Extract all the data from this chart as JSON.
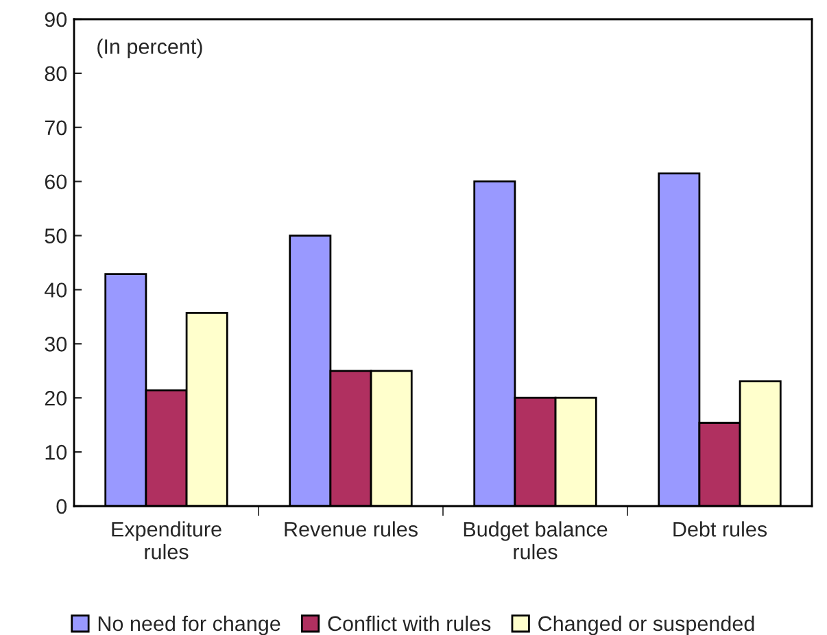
{
  "chart_data": {
    "type": "bar",
    "categories": [
      "Expenditure\nrules",
      "Revenue rules",
      "Budget balance\nrules",
      "Debt rules"
    ],
    "series": [
      {
        "name": "No need for change",
        "color": "#9999ff",
        "values": [
          42.9,
          50,
          60,
          61.5
        ]
      },
      {
        "name": "Conflict with rules",
        "color": "#b03060",
        "values": [
          21.4,
          25,
          20,
          15.4
        ]
      },
      {
        "name": "Changed or suspended",
        "color": "#ffffcc",
        "values": [
          35.7,
          25,
          20,
          23.1
        ]
      }
    ],
    "ylim": [
      0,
      90
    ],
    "yticks": [
      0,
      10,
      20,
      30,
      40,
      50,
      60,
      70,
      80,
      90
    ],
    "annotations": [
      "(In percent)"
    ],
    "legend": "bottom",
    "grid": false
  }
}
